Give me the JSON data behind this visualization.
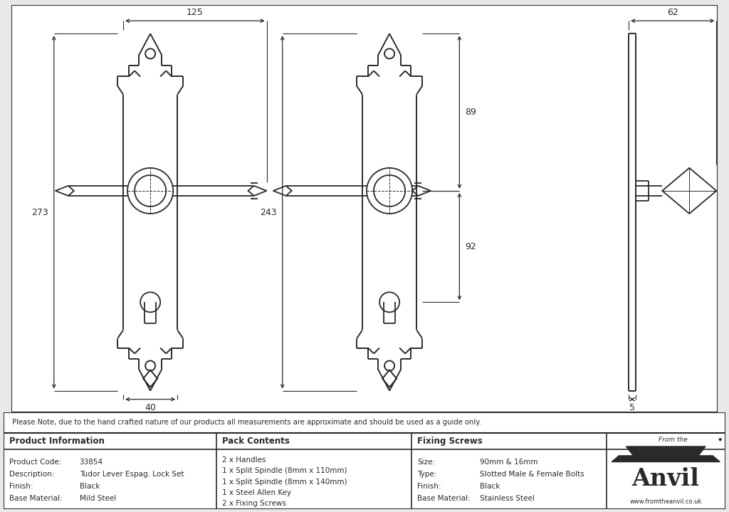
{
  "bg_color": "#e8e8e8",
  "drawing_bg": "#ffffff",
  "line_color": "#2a2a2a",
  "note_text": "Please Note, due to the hand crafted nature of our products all measurements are approximate and should be used as a guide only.",
  "table_headers": [
    "Product Information",
    "Pack Contents",
    "Fixing Screws"
  ],
  "product_info": [
    [
      "Product Code:",
      "33854"
    ],
    [
      "Description:",
      "Tudor Lever Espag. Lock Set"
    ],
    [
      "Finish:",
      "Black"
    ],
    [
      "Base Material:",
      "Mild Steel"
    ]
  ],
  "pack_contents": [
    "2 x Handles",
    "1 x Split Spindle (8mm x 110mm)",
    "1 x Split Spindle (8mm x 140mm)",
    "1 x Steel Allen Key",
    "2 x Fixing Screws"
  ],
  "fixing_screws": [
    [
      "Size:",
      "90mm & 16mm"
    ],
    [
      "Type:",
      "Slotted Male & Female Bolts"
    ],
    [
      "Finish:",
      "Black"
    ],
    [
      "Base Material:",
      "Stainless Steel"
    ]
  ],
  "dim_125": "125",
  "dim_273": "273",
  "dim_40": "40",
  "dim_243": "243",
  "dim_89": "89",
  "dim_92": "92",
  "dim_62": "62",
  "dim_5": "5",
  "col1": 0.295,
  "col2": 0.565,
  "col3": 0.835
}
